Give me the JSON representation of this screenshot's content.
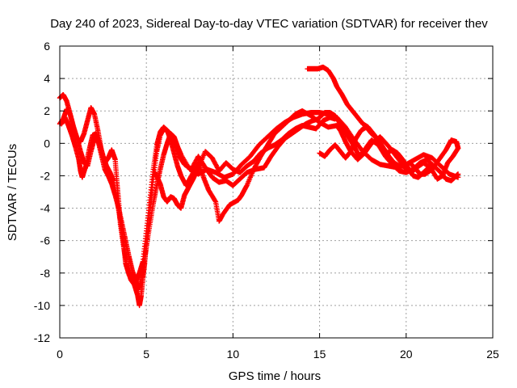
{
  "chart_data": {
    "type": "scatter",
    "title": "Day 240 of 2023, Sidereal Day-to-day VTEC variation (SDTVAR) for receiver thev",
    "xlabel": "GPS time / hours",
    "ylabel": "SDTVAR / TECUs",
    "xlim": [
      0,
      25
    ],
    "ylim": [
      -12,
      6
    ],
    "xticks": [
      0,
      5,
      10,
      15,
      20,
      25
    ],
    "yticks": [
      -12,
      -10,
      -8,
      -6,
      -4,
      -2,
      0,
      2,
      4,
      6
    ],
    "grid": true,
    "legend": "none",
    "marker": "+",
    "series": [
      {
        "name": "track-a",
        "color": "#ff0000",
        "points": [
          [
            0.0,
            1.2
          ],
          [
            0.2,
            1.5
          ],
          [
            0.4,
            2.1
          ],
          [
            0.6,
            1.8
          ],
          [
            0.8,
            1.0
          ],
          [
            1.0,
            0.3
          ],
          [
            1.2,
            -0.5
          ],
          [
            1.4,
            -1.2
          ],
          [
            1.6,
            -1.4
          ],
          [
            1.8,
            -0.5
          ],
          [
            2.0,
            0.3
          ],
          [
            2.2,
            0.2
          ],
          [
            2.4,
            -0.7
          ],
          [
            2.6,
            -1.6
          ],
          [
            2.8,
            -2.0
          ],
          [
            3.0,
            -2.5
          ],
          [
            3.2,
            -3.2
          ],
          [
            3.4,
            -4.0
          ],
          [
            3.6,
            -5.0
          ],
          [
            3.8,
            -6.0
          ],
          [
            4.0,
            -7.0
          ],
          [
            4.2,
            -7.9
          ],
          [
            4.4,
            -8.5
          ],
          [
            4.5,
            -9.0
          ],
          [
            4.6,
            -8.8
          ],
          [
            4.8,
            -7.8
          ],
          [
            5.0,
            -6.4
          ],
          [
            5.2,
            -5.0
          ],
          [
            5.4,
            -3.7
          ],
          [
            5.6,
            -2.6
          ],
          [
            5.8,
            -1.6
          ],
          [
            6.0,
            -0.7
          ],
          [
            6.2,
            0.0
          ],
          [
            6.4,
            0.6
          ],
          [
            6.6,
            0.4
          ],
          [
            6.8,
            -0.2
          ],
          [
            7.0,
            -0.7
          ],
          [
            7.5,
            -1.6
          ],
          [
            8.0,
            -1.9
          ],
          [
            8.5,
            -1.6
          ],
          [
            9.0,
            -1.8
          ],
          [
            9.5,
            -2.1
          ],
          [
            10.0,
            -1.9
          ],
          [
            10.5,
            -1.3
          ],
          [
            11.0,
            -0.8
          ],
          [
            11.5,
            -0.1
          ],
          [
            12.0,
            0.4
          ],
          [
            12.5,
            0.9
          ],
          [
            13.0,
            1.3
          ],
          [
            13.5,
            1.6
          ],
          [
            14.0,
            1.8
          ],
          [
            14.5,
            1.9
          ],
          [
            15.0,
            1.9
          ],
          [
            15.5,
            1.8
          ],
          [
            16.0,
            1.6
          ],
          [
            16.5,
            1.0
          ],
          [
            17.0,
            0.2
          ],
          [
            17.5,
            -0.5
          ],
          [
            18.0,
            -1.0
          ],
          [
            18.5,
            -1.3
          ],
          [
            19.0,
            -1.4
          ],
          [
            19.5,
            -1.5
          ],
          [
            20.0,
            -1.3
          ],
          [
            20.5,
            -1.0
          ],
          [
            21.0,
            -0.7
          ],
          [
            21.5,
            -0.9
          ],
          [
            22.0,
            -1.4
          ],
          [
            22.5,
            -1.9
          ],
          [
            23.0,
            -2.1
          ]
        ]
      },
      {
        "name": "track-b",
        "color": "#ff0000",
        "points": [
          [
            0.0,
            2.8
          ],
          [
            0.2,
            3.0
          ],
          [
            0.4,
            2.6
          ],
          [
            0.6,
            1.8
          ],
          [
            0.8,
            0.9
          ],
          [
            1.0,
            0.3
          ],
          [
            1.2,
            0.1
          ],
          [
            1.4,
            0.6
          ],
          [
            1.6,
            1.4
          ],
          [
            1.8,
            2.2
          ],
          [
            2.0,
            1.8
          ],
          [
            2.2,
            0.8
          ],
          [
            2.4,
            -0.4
          ],
          [
            2.6,
            -1.2
          ],
          [
            2.8,
            -0.9
          ],
          [
            3.0,
            -0.4
          ],
          [
            3.2,
            -1.0
          ],
          [
            3.3,
            -2.4
          ],
          [
            3.4,
            -3.6
          ],
          [
            3.5,
            -5.0
          ],
          [
            3.7,
            -6.5
          ],
          [
            3.9,
            -7.7
          ],
          [
            4.1,
            -8.4
          ],
          [
            4.3,
            -8.7
          ],
          [
            4.5,
            -9.4
          ],
          [
            4.6,
            -10.0
          ],
          [
            4.7,
            -9.4
          ],
          [
            4.8,
            -8.3
          ],
          [
            4.9,
            -7.4
          ],
          [
            5.0,
            -6.2
          ],
          [
            5.2,
            -4.3
          ],
          [
            5.4,
            -2.2
          ],
          [
            5.6,
            -0.5
          ],
          [
            5.8,
            0.5
          ],
          [
            6.0,
            0.9
          ],
          [
            6.2,
            0.8
          ],
          [
            6.4,
            0.2
          ],
          [
            6.6,
            -0.6
          ],
          [
            6.8,
            -1.4
          ],
          [
            7.0,
            -2.0
          ],
          [
            7.3,
            -2.6
          ],
          [
            7.6,
            -2.0
          ],
          [
            8.0,
            -1.2
          ],
          [
            8.3,
            -2.1
          ],
          [
            8.6,
            -2.9
          ],
          [
            9.0,
            -3.6
          ],
          [
            9.2,
            -4.8
          ],
          [
            9.4,
            -4.4
          ],
          [
            9.8,
            -3.8
          ],
          [
            10.3,
            -3.5
          ],
          [
            10.5,
            -3.2
          ],
          [
            10.8,
            -2.6
          ],
          [
            11.2,
            -1.6
          ],
          [
            11.6,
            -0.8
          ],
          [
            12.0,
            -0.1
          ],
          [
            12.4,
            0.6
          ],
          [
            12.8,
            1.0
          ],
          [
            13.2,
            1.4
          ],
          [
            13.6,
            1.8
          ],
          [
            14.0,
            2.0
          ],
          [
            14.5,
            1.7
          ],
          [
            15.0,
            1.3
          ],
          [
            15.5,
            1.0
          ],
          [
            16.0,
            1.1
          ],
          [
            16.2,
            0.8
          ],
          [
            16.5,
            0.1
          ],
          [
            16.8,
            -0.5
          ],
          [
            17.2,
            -1.0
          ],
          [
            17.6,
            -0.6
          ],
          [
            18.0,
            0.0
          ],
          [
            18.5,
            0.4
          ],
          [
            19.0,
            -0.2
          ],
          [
            19.5,
            -0.9
          ],
          [
            20.0,
            -1.6
          ],
          [
            20.3,
            -1.8
          ],
          [
            20.6,
            -1.5
          ],
          [
            21.0,
            -1.2
          ],
          [
            21.4,
            -1.5
          ],
          [
            21.8,
            -2.2
          ],
          [
            22.1,
            -2.0
          ],
          [
            22.4,
            -1.2
          ],
          [
            22.7,
            -0.8
          ],
          [
            23.0,
            -0.3
          ]
        ]
      },
      {
        "name": "track-c",
        "color": "#ff0000",
        "points": [
          [
            0.1,
            1.2
          ],
          [
            0.3,
            1.6
          ],
          [
            0.5,
            1.1
          ],
          [
            0.7,
            0.5
          ],
          [
            0.9,
            -0.2
          ],
          [
            1.1,
            -1.0
          ],
          [
            1.2,
            -1.7
          ],
          [
            1.3,
            -2.1
          ],
          [
            1.5,
            -1.4
          ],
          [
            1.7,
            -0.4
          ],
          [
            1.9,
            0.5
          ],
          [
            2.1,
            0.6
          ],
          [
            2.3,
            0.0
          ],
          [
            2.5,
            -0.8
          ],
          [
            2.7,
            -1.4
          ],
          [
            2.9,
            -1.8
          ],
          [
            3.1,
            -2.3
          ],
          [
            3.3,
            -3.5
          ],
          [
            3.5,
            -4.8
          ],
          [
            3.7,
            -6.3
          ],
          [
            3.8,
            -7.4
          ],
          [
            4.0,
            -8.1
          ],
          [
            4.2,
            -8.4
          ],
          [
            4.4,
            -8.5
          ],
          [
            4.6,
            -8.0
          ],
          [
            4.8,
            -7.3
          ],
          [
            5.0,
            -5.4
          ],
          [
            5.2,
            -3.5
          ],
          [
            5.4,
            -1.6
          ],
          [
            5.6,
            -0.1
          ],
          [
            5.8,
            0.7
          ],
          [
            6.0,
            1.0
          ],
          [
            6.3,
            0.7
          ],
          [
            6.6,
            0.0
          ],
          [
            6.9,
            -0.8
          ],
          [
            7.2,
            -1.3
          ],
          [
            7.6,
            -1.6
          ],
          [
            8.0,
            -0.8
          ],
          [
            8.4,
            -1.5
          ],
          [
            8.8,
            -2.1
          ],
          [
            9.2,
            -2.4
          ],
          [
            9.6,
            -2.3
          ],
          [
            10.0,
            -2.6
          ],
          [
            10.4,
            -2.2
          ],
          [
            10.8,
            -1.8
          ],
          [
            11.3,
            -1.6
          ],
          [
            11.8,
            -1.5
          ],
          [
            12.2,
            -0.8
          ],
          [
            12.6,
            -0.2
          ],
          [
            13.0,
            0.3
          ],
          [
            13.4,
            0.6
          ],
          [
            13.8,
            0.9
          ],
          [
            14.2,
            1.2
          ],
          [
            14.6,
            1.4
          ],
          [
            14.9,
            1.5
          ],
          [
            15.3,
            1.9
          ],
          [
            15.6,
            1.9
          ],
          [
            15.9,
            1.7
          ],
          [
            16.2,
            1.2
          ],
          [
            16.6,
            0.5
          ],
          [
            17.0,
            -0.2
          ],
          [
            17.3,
            -0.8
          ],
          [
            17.6,
            -0.4
          ],
          [
            18.0,
            0.2
          ],
          [
            18.4,
            -0.1
          ],
          [
            18.8,
            -0.8
          ],
          [
            19.2,
            -1.3
          ],
          [
            19.6,
            -1.7
          ],
          [
            20.0,
            -1.8
          ],
          [
            20.4,
            -1.6
          ],
          [
            20.8,
            -1.2
          ],
          [
            21.2,
            -1.0
          ],
          [
            21.6,
            -1.4
          ],
          [
            22.0,
            -1.8
          ],
          [
            22.3,
            -2.2
          ],
          [
            22.6,
            -2.3
          ],
          [
            22.9,
            -2.0
          ],
          [
            23.0,
            -1.9
          ]
        ]
      },
      {
        "name": "track-d",
        "color": "#ff0000",
        "points": [
          [
            5.5,
            -1.8
          ],
          [
            5.8,
            -2.5
          ],
          [
            6.0,
            -3.3
          ],
          [
            6.2,
            -3.6
          ],
          [
            6.4,
            -3.3
          ],
          [
            6.6,
            -3.4
          ],
          [
            6.8,
            -3.8
          ],
          [
            7.0,
            -4.0
          ],
          [
            7.2,
            -3.2
          ],
          [
            7.4,
            -2.8
          ],
          [
            7.7,
            -2.2
          ],
          [
            8.0,
            -1.5
          ],
          [
            8.4,
            -0.5
          ],
          [
            8.8,
            -0.9
          ],
          [
            9.2,
            -1.7
          ],
          [
            9.6,
            -1.2
          ],
          [
            10.0,
            -1.6
          ],
          [
            10.4,
            -1.8
          ],
          [
            10.8,
            -1.4
          ],
          [
            11.2,
            -1.1
          ],
          [
            11.6,
            -0.6
          ],
          [
            12.0,
            -0.3
          ],
          [
            12.4,
            -0.1
          ],
          [
            12.8,
            0.2
          ],
          [
            13.2,
            0.6
          ],
          [
            13.6,
            0.9
          ],
          [
            14.0,
            1.1
          ],
          [
            14.4,
            1.0
          ],
          [
            14.8,
            0.9
          ],
          [
            15.2,
            1.4
          ],
          [
            15.6,
            1.6
          ],
          [
            15.9,
            1.5
          ]
        ]
      },
      {
        "name": "track-e",
        "color": "#ff0000",
        "points": [
          [
            14.3,
            4.6
          ],
          [
            14.6,
            4.6
          ],
          [
            14.9,
            4.6
          ],
          [
            15.2,
            4.7
          ],
          [
            15.5,
            4.5
          ],
          [
            15.8,
            4.0
          ],
          [
            16.0,
            3.5
          ],
          [
            16.3,
            3.0
          ],
          [
            16.6,
            2.4
          ],
          [
            16.9,
            2.0
          ],
          [
            17.2,
            1.6
          ],
          [
            17.5,
            1.2
          ],
          [
            17.8,
            1.0
          ],
          [
            18.1,
            0.6
          ],
          [
            18.4,
            0.2
          ],
          [
            18.7,
            -0.3
          ],
          [
            19.0,
            -0.8
          ],
          [
            19.3,
            -1.2
          ],
          [
            19.6,
            -1.4
          ],
          [
            19.9,
            -1.4
          ],
          [
            20.2,
            -1.2
          ],
          [
            20.5,
            -1.5
          ],
          [
            20.8,
            -1.9
          ],
          [
            21.1,
            -1.9
          ],
          [
            21.5,
            -1.6
          ],
          [
            21.9,
            -1.0
          ],
          [
            22.3,
            -0.4
          ],
          [
            22.6,
            0.2
          ],
          [
            22.9,
            0.1
          ],
          [
            23.0,
            -0.3
          ]
        ]
      },
      {
        "name": "track-f",
        "color": "#ff0000",
        "points": [
          [
            15.0,
            -0.6
          ],
          [
            15.3,
            -0.8
          ],
          [
            15.6,
            -0.4
          ],
          [
            15.9,
            -0.1
          ],
          [
            16.2,
            -0.5
          ],
          [
            16.5,
            -0.9
          ],
          [
            16.8,
            -0.5
          ],
          [
            17.1,
            0.3
          ],
          [
            17.4,
            0.8
          ],
          [
            17.7,
            1.0
          ],
          [
            18.0,
            0.6
          ],
          [
            18.3,
            0.3
          ],
          [
            18.6,
            -0.2
          ],
          [
            18.9,
            -0.6
          ],
          [
            19.2,
            -0.4
          ],
          [
            19.5,
            -0.6
          ],
          [
            19.8,
            -1.0
          ],
          [
            20.1,
            -1.5
          ],
          [
            20.4,
            -2.0
          ],
          [
            20.7,
            -2.1
          ],
          [
            21.0,
            -1.8
          ],
          [
            21.3,
            -1.5
          ]
        ]
      }
    ]
  }
}
